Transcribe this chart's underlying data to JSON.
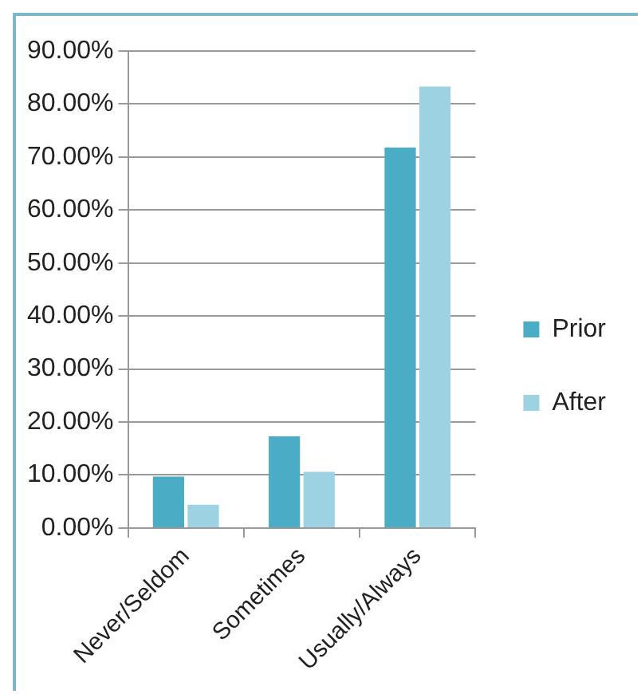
{
  "chart_data": {
    "type": "bar",
    "categories": [
      "Never/Seldom",
      "Sometimes",
      "Usually/Always"
    ],
    "series": [
      {
        "name": "Prior",
        "color": "#4bacc6",
        "values": [
          9.7,
          17.3,
          71.8
        ]
      },
      {
        "name": "After",
        "color": "#9dd2e2",
        "values": [
          4.4,
          10.6,
          83.3
        ]
      }
    ],
    "ylim": [
      0,
      90
    ],
    "yticks": [
      {
        "value": 0,
        "label": "0.00%"
      },
      {
        "value": 10,
        "label": "10.00%"
      },
      {
        "value": 20,
        "label": "20.00%"
      },
      {
        "value": 30,
        "label": "30.00%"
      },
      {
        "value": 40,
        "label": "40.00%"
      },
      {
        "value": 50,
        "label": "50.00%"
      },
      {
        "value": 60,
        "label": "60.00%"
      },
      {
        "value": 70,
        "label": "70.00%"
      },
      {
        "value": 80,
        "label": "80.00%"
      },
      {
        "value": 90,
        "label": "90.00%"
      }
    ],
    "grid": "y",
    "legend": "right"
  }
}
